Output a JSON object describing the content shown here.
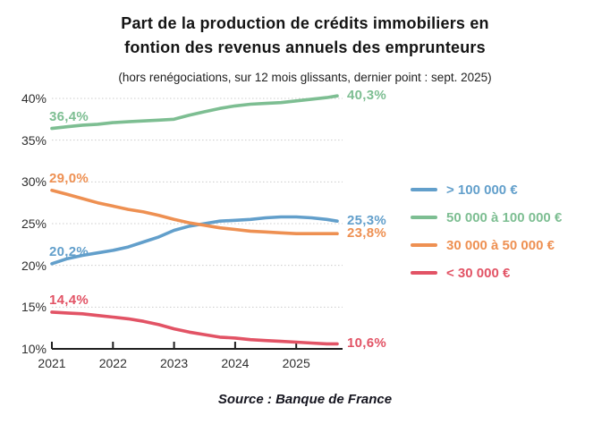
{
  "header": {
    "title_lines": [
      "Part de la production de crédits immobiliers en",
      "fontion des revenus annuels des emprunteurs"
    ],
    "subtitle": "(hors renégociations, sur 12 mois glissants, dernier point : sept. 2025)"
  },
  "footer": {
    "source": "Source : Banque de France"
  },
  "colors": {
    "blue": "#629fcb",
    "green": "#7dbe92",
    "orange": "#ee9052",
    "red": "#e25365",
    "axis": "#1e1e1e",
    "gridline": "#cccccc",
    "text_dark": "#141414"
  },
  "chart_data": {
    "type": "line",
    "title": "Part de la production de crédits immobiliers en fontion des revenus annuels des emprunteurs",
    "subtitle": "(hors renégociations, sur 12 mois glissants, dernier point : sept. 2025)",
    "xlabel": "",
    "ylabel": "",
    "xlim": [
      2021,
      2025.75
    ],
    "ylim": [
      10,
      41
    ],
    "grid": "horizontal-dotted",
    "legend_position": "right",
    "xticks": [
      "2021",
      "2022",
      "2023",
      "2024",
      "2025"
    ],
    "yticks": [
      "10%",
      "15%",
      "20%",
      "25%",
      "30%",
      "35%",
      "40%"
    ],
    "x": [
      2021.0,
      2021.25,
      2021.5,
      2021.75,
      2022.0,
      2022.25,
      2022.5,
      2022.75,
      2023.0,
      2023.25,
      2023.5,
      2023.75,
      2024.0,
      2024.25,
      2024.5,
      2024.75,
      2025.0,
      2025.25,
      2025.5,
      2025.67
    ],
    "series": [
      {
        "name": "> 100 000 €",
        "color": "#629fcb",
        "start_label": "20,2%",
        "end_label": "25,3%",
        "values": [
          20.2,
          20.8,
          21.2,
          21.5,
          21.8,
          22.2,
          22.8,
          23.4,
          24.2,
          24.7,
          25.0,
          25.3,
          25.4,
          25.5,
          25.7,
          25.8,
          25.8,
          25.7,
          25.5,
          25.3
        ]
      },
      {
        "name": "50 000 à 100 000 €",
        "color": "#7dbe92",
        "start_label": "36,4%",
        "end_label": "40,3%",
        "values": [
          36.4,
          36.6,
          36.8,
          36.9,
          37.1,
          37.2,
          37.3,
          37.4,
          37.5,
          38.0,
          38.4,
          38.8,
          39.1,
          39.3,
          39.4,
          39.5,
          39.7,
          39.9,
          40.1,
          40.3
        ]
      },
      {
        "name": "30 000 à 50 000 €",
        "color": "#ee9052",
        "start_label": "29,0%",
        "end_label": "23,8%",
        "values": [
          29.0,
          28.5,
          28.0,
          27.5,
          27.1,
          26.7,
          26.4,
          26.0,
          25.5,
          25.1,
          24.8,
          24.5,
          24.3,
          24.1,
          24.0,
          23.9,
          23.8,
          23.8,
          23.8,
          23.8
        ]
      },
      {
        "name": "< 30 000 €",
        "color": "#e25365",
        "start_label": "14,4%",
        "end_label": "10,6%",
        "values": [
          14.4,
          14.3,
          14.2,
          14.0,
          13.8,
          13.6,
          13.3,
          12.9,
          12.4,
          12.0,
          11.7,
          11.4,
          11.3,
          11.1,
          11.0,
          10.9,
          10.8,
          10.7,
          10.6,
          10.6
        ]
      }
    ]
  }
}
